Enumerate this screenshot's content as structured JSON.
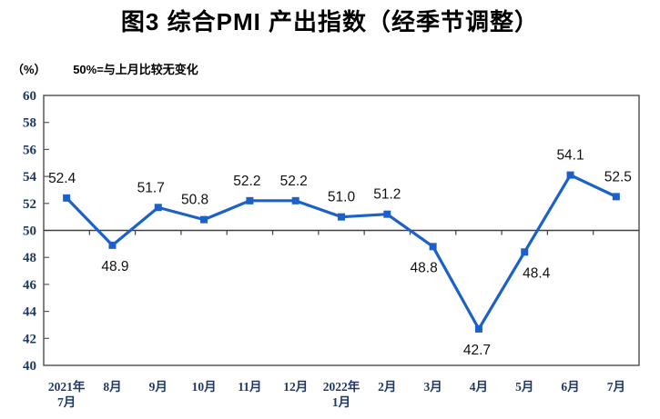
{
  "title": "图3 综合PMI 产出指数（经季节调整）",
  "unit_label": "（%）",
  "axis_note": "50%=与上月比较无变化",
  "chart_data": {
    "type": "line",
    "title": "图3 综合PMI 产出指数（经季节调整）",
    "xlabel": "",
    "ylabel": "（%）",
    "categories": [
      "2021年\n7月",
      "8月",
      "9月",
      "10月",
      "11月",
      "12月",
      "2022年\n1月",
      "2月",
      "3月",
      "4月",
      "5月",
      "6月",
      "7月"
    ],
    "values": [
      52.4,
      48.9,
      51.7,
      50.8,
      52.2,
      52.2,
      51.0,
      51.2,
      48.8,
      42.7,
      48.4,
      54.1,
      52.5
    ],
    "data_labels": [
      "52.4",
      "48.9",
      "51.7",
      "50.8",
      "52.2",
      "52.2",
      "51.0",
      "51.2",
      "48.8",
      "42.7",
      "48.4",
      "54.1",
      "52.5"
    ],
    "label_position": [
      "above",
      "below",
      "above",
      "above",
      "above",
      "above",
      "above",
      "above",
      "below",
      "below",
      "below",
      "above",
      "above"
    ],
    "label_dx": [
      -5,
      3,
      -8,
      -10,
      -3,
      -2,
      0,
      0,
      -10,
      -2,
      13,
      0,
      2
    ],
    "ylim": [
      40,
      60
    ],
    "yticks": [
      40,
      42,
      44,
      46,
      48,
      50,
      52,
      54,
      56,
      58,
      60
    ],
    "reference_line": 50,
    "grid": "off",
    "legend": "none",
    "colors": {
      "line": "#1C61C8",
      "marker": "#1C61C8",
      "axis_text": "#1F3864",
      "label_text": "#111111",
      "border": "#595959",
      "refline": "#3F3F3F"
    }
  }
}
